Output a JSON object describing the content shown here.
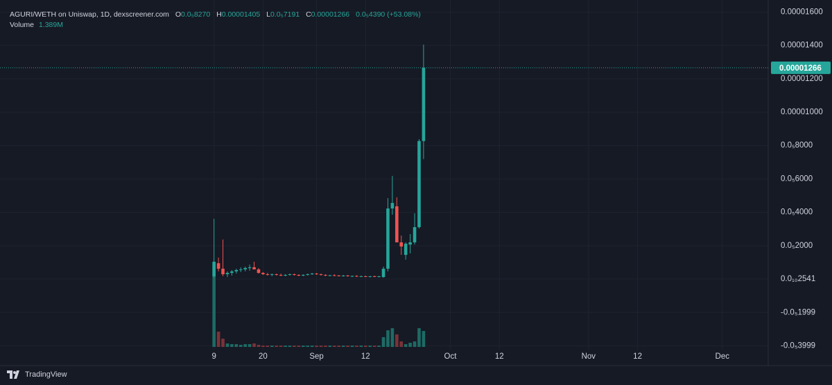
{
  "header": {
    "symbol": "AGURI/WETH on Uniswap, 1D, dexscreener.com",
    "o_key": "O",
    "o": "0.0₅8270",
    "h_key": "H",
    "h": "0.00001405",
    "l_key": "L",
    "l": "0.0₅7191",
    "c_key": "C",
    "c": "0.00001266",
    "change": "0.0₅4390 (+53.08%)",
    "volume_key": "Volume",
    "volume": "1.389M"
  },
  "footer": {
    "brand": "TradingView"
  },
  "chart_data": {
    "type": "candlestick",
    "x": [
      0,
      1,
      2,
      3,
      4,
      5,
      6,
      7,
      8,
      9,
      10,
      11,
      12,
      13,
      14,
      15,
      16,
      17,
      18,
      19,
      20,
      21,
      22,
      23,
      24,
      25,
      26,
      27,
      28,
      29,
      30,
      31,
      32,
      33,
      34,
      35,
      36,
      37,
      38,
      39,
      40,
      41,
      42,
      43,
      44,
      45,
      46,
      47
    ],
    "open": [
      1.7e-07,
      9.5e-07,
      6.2e-07,
      2.9e-07,
      3.7e-07,
      4.6e-07,
      5.4e-07,
      5.8e-07,
      6.6e-07,
      7.1e-07,
      5.8e-07,
      3.7e-07,
      2.9e-07,
      2.5e-07,
      2.9e-07,
      2.5e-07,
      2.1e-07,
      2.5e-07,
      2.9e-07,
      2.5e-07,
      2.1e-07,
      2.5e-07,
      2.9e-07,
      3.3e-07,
      2.9e-07,
      2.5e-07,
      2.1e-07,
      2.3e-07,
      2.1e-07,
      1.9e-07,
      2.1e-07,
      1.7e-07,
      1.9e-07,
      1.5e-07,
      1.7e-07,
      1.5e-07,
      1.7e-07,
      1.5e-07,
      1.2e-07,
      6.2e-07,
      4.23e-06,
      4.36e-06,
      2.2e-06,
      1.45e-06,
      2.07e-06,
      2.2e-06,
      3.11e-06,
      8.27e-06
    ],
    "high": [
      3.61e-06,
      1.29e-06,
      2.37e-06,
      4.6e-07,
      5.4e-07,
      6.2e-07,
      7e-07,
      7.5e-07,
      8.7e-07,
      1.04e-06,
      6.6e-07,
      4.2e-07,
      3.7e-07,
      3.3e-07,
      3.3e-07,
      3.3e-07,
      2.9e-07,
      3.3e-07,
      3.3e-07,
      2.9e-07,
      2.9e-07,
      3.3e-07,
      3.7e-07,
      3.7e-07,
      3.3e-07,
      2.9e-07,
      2.5e-07,
      2.9e-07,
      2.5e-07,
      2.5e-07,
      2.5e-07,
      2.1e-07,
      2.3e-07,
      2.1e-07,
      2.1e-07,
      1.9e-07,
      2.1e-07,
      1.9e-07,
      7.5e-07,
      4.85e-06,
      6.18e-06,
      4.9e-06,
      2.61e-06,
      2.2e-06,
      2.7e-06,
      3.94e-06,
      8.38e-06,
      1.405e-05
    ],
    "low": [
      8e-08,
      4.6e-07,
      1.7e-07,
      1.2e-07,
      2.1e-07,
      3.3e-07,
      4.2e-07,
      4.6e-07,
      5e-07,
      5.8e-07,
      3.3e-07,
      2.5e-07,
      2.1e-07,
      1.7e-07,
      2.1e-07,
      1.7e-07,
      1.7e-07,
      2.1e-07,
      2.1e-07,
      1.7e-07,
      1.7e-07,
      2.1e-07,
      2.5e-07,
      2.5e-07,
      2.1e-07,
      1.7e-07,
      1.7e-07,
      1.7e-07,
      1.7e-07,
      1.5e-07,
      1.5e-07,
      1.2e-07,
      1.2e-07,
      1.2e-07,
      1.2e-07,
      1e-07,
      1.2e-07,
      1e-07,
      8e-08,
      4.6e-07,
      3.86e-06,
      2.24e-06,
      1.45e-06,
      1.16e-06,
      1.54e-06,
      2.07e-06,
      3.03e-06,
      7.191e-06
    ],
    "close": [
      1.04e-06,
      6.2e-07,
      2.9e-07,
      3.7e-07,
      4.6e-07,
      5.4e-07,
      5.8e-07,
      6.6e-07,
      7.1e-07,
      5.8e-07,
      3.7e-07,
      2.9e-07,
      2.5e-07,
      2.9e-07,
      2.5e-07,
      2.1e-07,
      2.5e-07,
      2.9e-07,
      2.5e-07,
      2.1e-07,
      2.5e-07,
      2.9e-07,
      3.3e-07,
      2.9e-07,
      2.5e-07,
      2.1e-07,
      2.3e-07,
      2.1e-07,
      1.9e-07,
      2.1e-07,
      1.7e-07,
      1.9e-07,
      1.5e-07,
      1.7e-07,
      1.5e-07,
      1.7e-07,
      1.5e-07,
      1.7e-07,
      6.2e-07,
      4.23e-06,
      4.56e-06,
      2.2e-06,
      1.95e-06,
      2.12e-06,
      2.2e-06,
      3.11e-06,
      8.27e-06,
      1.266e-05
    ],
    "volume": [
      7300000,
      1330000,
      720000,
      300000,
      240000,
      240000,
      180000,
      240000,
      240000,
      300000,
      180000,
      120000,
      120000,
      120000,
      120000,
      120000,
      120000,
      120000,
      120000,
      120000,
      120000,
      120000,
      120000,
      120000,
      120000,
      120000,
      120000,
      120000,
      120000,
      120000,
      120000,
      120000,
      120000,
      120000,
      120000,
      120000,
      120000,
      120000,
      850000,
      1450000,
      1630000,
      1090000,
      480000,
      240000,
      360000,
      480000,
      1630000,
      1389000
    ],
    "up_color": "#26a69a",
    "down_color": "#ef5350",
    "up_volume_color": "#1d6b64",
    "down_volume_color": "#7b3238",
    "last_price": {
      "value": 1.266e-05,
      "label": "0.00001266"
    },
    "xlim": [
      -48,
      124.3
    ],
    "xticks": [
      {
        "value": 0,
        "label": "9"
      },
      {
        "value": 11,
        "label": "20"
      },
      {
        "value": 23,
        "label": "Sep"
      },
      {
        "value": 34,
        "label": "12"
      },
      {
        "value": 53,
        "label": "Oct"
      },
      {
        "value": 64,
        "label": "12"
      },
      {
        "value": 84,
        "label": "Nov"
      },
      {
        "value": 95,
        "label": "12"
      },
      {
        "value": 114,
        "label": "Dec"
      }
    ],
    "ylim": [
      -4.23e-06,
      1.672e-05
    ],
    "yticks": [
      {
        "value": 1.6e-05,
        "label": "0.00001600"
      },
      {
        "value": 1.4e-05,
        "label": "0.00001400"
      },
      {
        "value": 1.2e-05,
        "label": "0.00001200"
      },
      {
        "value": 1e-05,
        "label": "0.00001000"
      },
      {
        "value": 8e-06,
        "label": "0.0₅8000"
      },
      {
        "value": 6e-06,
        "label": "0.0₅6000"
      },
      {
        "value": 4e-06,
        "label": "0.0₅4000"
      },
      {
        "value": 2e-06,
        "label": "0.0₅2000"
      },
      {
        "value": 2.541e-11,
        "label": "0.0₁₀2541"
      },
      {
        "value": -1.999e-06,
        "label": "-0.0₅1999"
      },
      {
        "value": -3.999e-06,
        "label": "-0.0₅3999"
      }
    ],
    "grid": true
  }
}
